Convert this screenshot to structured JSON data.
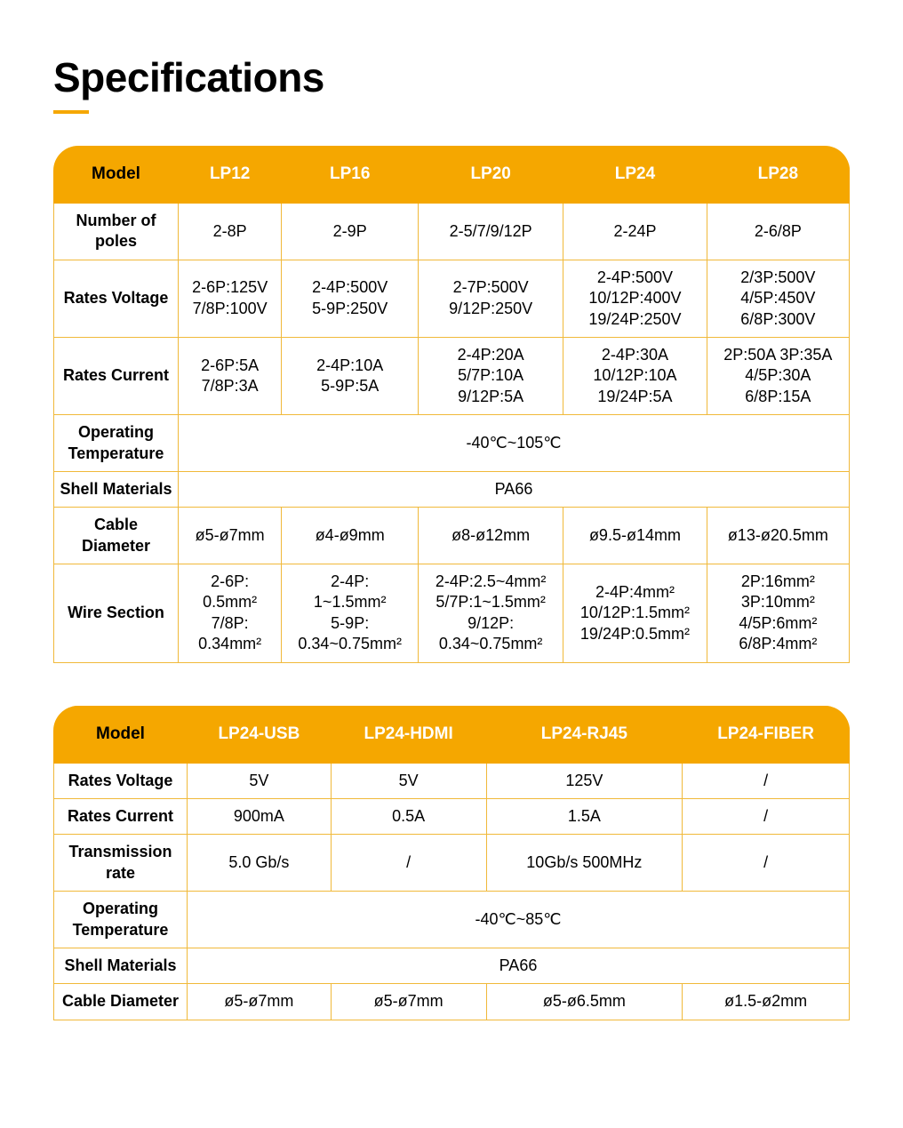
{
  "page": {
    "title": "Specifications",
    "accent_color": "#f5a700",
    "border_color": "#f0b93a",
    "header_bg": "#f5a700",
    "header_model_text_color": "#ffffff",
    "header_label_text_color": "#000000",
    "body_bg": "#ffffff",
    "body_text_color": "#000000",
    "title_fontsize": 46,
    "header_fontsize": 19,
    "cell_fontsize": 18,
    "corner_radius": 28
  },
  "table1": {
    "model_label": "Model",
    "columns": [
      "LP12",
      "LP16",
      "LP20",
      "LP24",
      "LP28"
    ],
    "rows": [
      {
        "label": "Number of\npoles",
        "cells": [
          "2-8P",
          "2-9P",
          "2-5/7/9/12P",
          "2-24P",
          "2-6/8P"
        ]
      },
      {
        "label": "Rates\nVoltage",
        "cells": [
          "2-6P:125V\n7/8P:100V",
          "2-4P:500V\n5-9P:250V",
          "2-7P:500V\n9/12P:250V",
          "2-4P:500V\n10/12P:400V\n19/24P:250V",
          "2/3P:500V\n4/5P:450V\n6/8P:300V"
        ]
      },
      {
        "label": "Rates\nCurrent",
        "cells": [
          "2-6P:5A\n7/8P:3A",
          "2-4P:10A\n5-9P:5A",
          "2-4P:20A\n5/7P:10A\n9/12P:5A",
          "2-4P:30A\n10/12P:10A\n19/24P:5A",
          "2P:50A  3P:35A\n4/5P:30A\n6/8P:15A"
        ]
      },
      {
        "label": "Operating\nTemperature",
        "span": true,
        "value": "-40℃~105℃"
      },
      {
        "label": "Shell\nMaterials",
        "span": true,
        "value": "PA66"
      },
      {
        "label": "Cable\nDiameter",
        "cells": [
          "ø5-ø7mm",
          "ø4-ø9mm",
          "ø8-ø12mm",
          "ø9.5-ø14mm",
          "ø13-ø20.5mm"
        ]
      },
      {
        "label": "Wire\nSection",
        "cells": [
          "2-6P:\n0.5mm²\n7/8P:\n0.34mm²",
          "2-4P:\n1~1.5mm²\n5-9P:\n0.34~0.75mm²",
          "2-4P:2.5~4mm²\n5/7P:1~1.5mm²\n9/12P:\n0.34~0.75mm²",
          "2-4P:4mm²\n10/12P:1.5mm²\n19/24P:0.5mm²",
          "2P:16mm²\n3P:10mm²\n4/5P:6mm²\n6/8P:4mm²"
        ]
      }
    ]
  },
  "table2": {
    "model_label": "Model",
    "columns": [
      "LP24-USB",
      "LP24-HDMI",
      "LP24-RJ45",
      "LP24-FIBER"
    ],
    "rows": [
      {
        "label": "Rates\nVoltage",
        "cells": [
          "5V",
          "5V",
          "125V",
          "/"
        ]
      },
      {
        "label": "Rates\nCurrent",
        "cells": [
          "900mA",
          "0.5A",
          "1.5A",
          "/"
        ]
      },
      {
        "label": "Transmission\nrate",
        "cells": [
          "5.0 Gb/s",
          "/",
          "10Gb/s 500MHz",
          "/"
        ]
      },
      {
        "label": "Operating\nTemperature",
        "span": true,
        "value": "-40℃~85℃"
      },
      {
        "label": "Shell\nMaterials",
        "span": true,
        "value": "PA66"
      },
      {
        "label": "Cable\nDiameter",
        "cells": [
          "ø5-ø7mm",
          "ø5-ø7mm",
          "ø5-ø6.5mm",
          "ø1.5-ø2mm"
        ]
      }
    ]
  }
}
